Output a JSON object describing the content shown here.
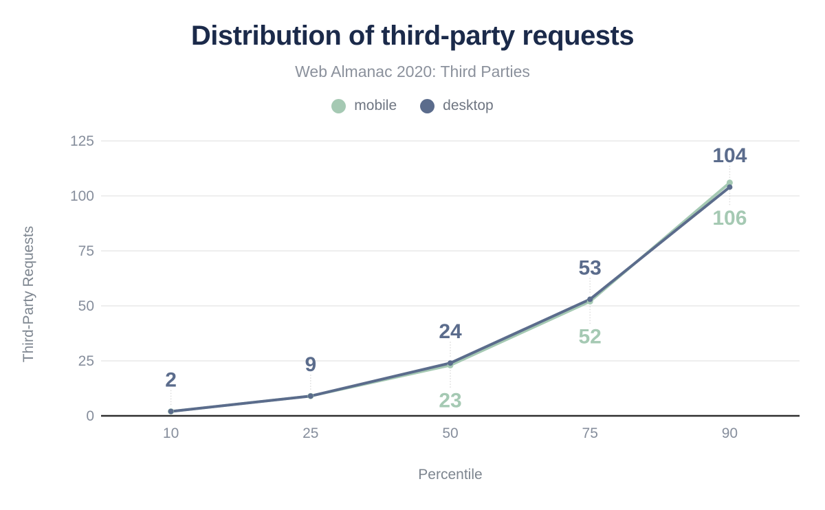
{
  "header": {
    "title": "Distribution of third-party requests",
    "subtitle": "Web Almanac 2020: Third Parties"
  },
  "legend": {
    "items": [
      {
        "label": "mobile",
        "color": "#a5c9b3"
      },
      {
        "label": "desktop",
        "color": "#5b6c8c"
      }
    ]
  },
  "axes": {
    "x_title": "Percentile",
    "y_title": "Third-Party Requests"
  },
  "chart_data": {
    "type": "line",
    "title": "Distribution of third-party requests",
    "subtitle": "Web Almanac 2020: Third Parties",
    "xlabel": "Percentile",
    "ylabel": "Third-Party Requests",
    "categories": [
      "10",
      "25",
      "50",
      "75",
      "90"
    ],
    "series": [
      {
        "name": "mobile",
        "color": "#a5c9b3",
        "values": [
          2,
          9,
          23,
          52,
          106
        ],
        "point_labels": [
          "",
          "",
          "23",
          "52",
          "106"
        ],
        "label_side": "below",
        "marker_radius": 4.5
      },
      {
        "name": "desktop",
        "color": "#5b6c8c",
        "values": [
          2,
          9,
          24,
          53,
          104
        ],
        "point_labels": [
          "2",
          "9",
          "24",
          "53",
          "104"
        ],
        "label_side": "above",
        "marker_radius": 4
      }
    ],
    "ylim": [
      0,
      125
    ],
    "yticks": [
      0,
      25,
      50,
      75,
      100,
      125
    ],
    "grid": true,
    "legend_position": "top"
  },
  "colors": {
    "title": "#1b2a4a",
    "subtitle": "#8b919c",
    "tick_text": "#868e9c",
    "axis_title_text": "#7d858f",
    "gridline": "#e9e9e9",
    "axis_line": "#2f2f2f",
    "leader_line": "#dcdcdc",
    "background": "#ffffff"
  }
}
